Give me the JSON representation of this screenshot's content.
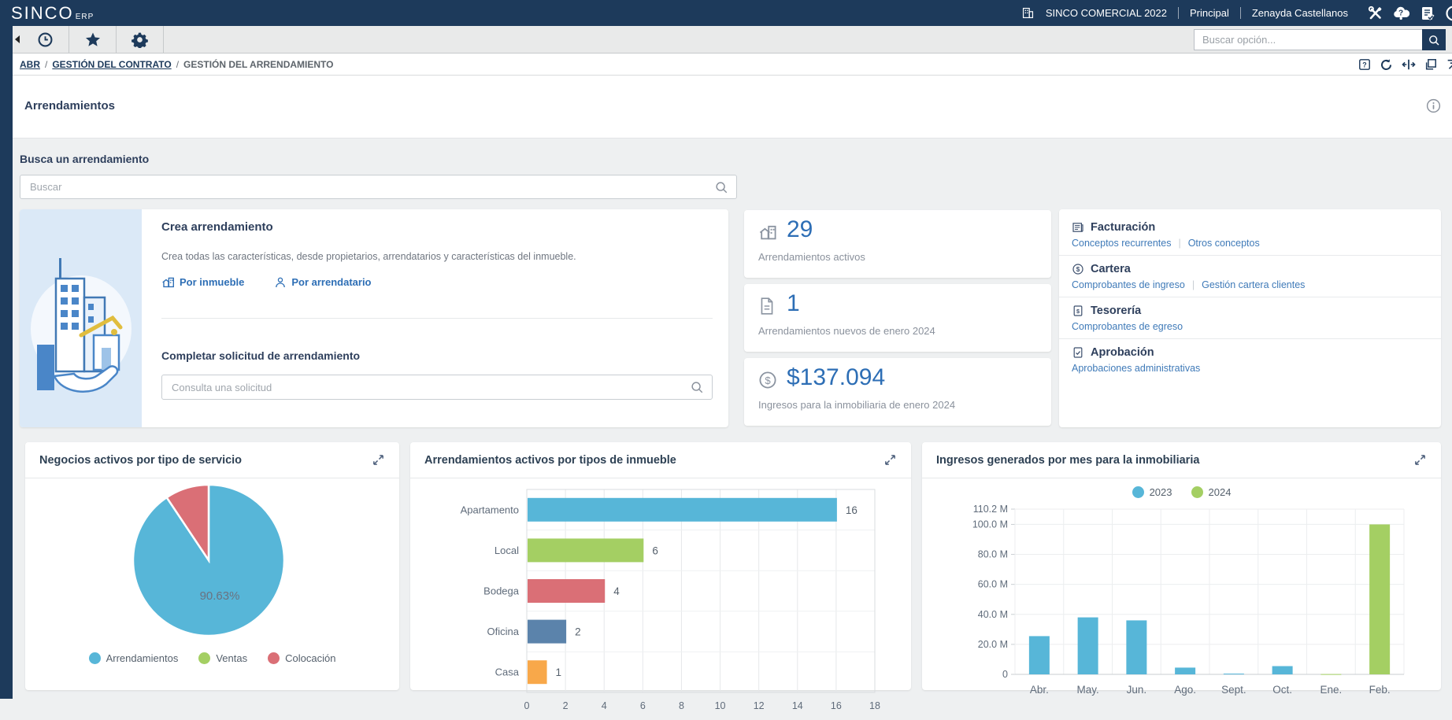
{
  "topbar": {
    "logo": "SINCO",
    "logo_sub": "ERP",
    "company": "SINCO COMERCIAL 2022",
    "nav_principal": "Principal",
    "user": "Zenayda Castellanos",
    "icons": [
      "company-building-icon",
      "tools-icon",
      "help-cloud-icon",
      "tasks-check-icon",
      "power-icon"
    ]
  },
  "toolbar": {
    "search_placeholder": "Buscar opción...",
    "tabs": [
      "recent-icon",
      "favorites-icon",
      "settings-icon"
    ]
  },
  "breadcrumb": {
    "items": [
      "ABR",
      "GESTIÓN DEL CONTRATO",
      "GESTIÓN DEL ARRENDAMIENTO"
    ],
    "window_icons": [
      "help-box-icon",
      "refresh-icon",
      "split-icon",
      "windows-icon",
      "export-icon"
    ]
  },
  "page": {
    "title": "Arrendamientos"
  },
  "search_section": {
    "label": "Busca un arrendamiento",
    "placeholder": "Buscar"
  },
  "create_card": {
    "title": "Crea arrendamiento",
    "description": "Crea todas las características, desde propietarios, arrendatarios y características del inmueble.",
    "link_inmueble": "Por inmueble",
    "link_arrendatario": "Por arrendatario",
    "request_title": "Completar solicitud de arrendamiento",
    "request_placeholder": "Consulta una solicitud"
  },
  "stats": [
    {
      "value": "29",
      "label": "Arrendamientos activos",
      "icon": "building-icon"
    },
    {
      "value": "1",
      "label": "Arrendamientos nuevos de enero 2024",
      "icon": "document-icon"
    },
    {
      "value": "$137.094",
      "label": "Ingresos para la inmobiliaria de enero 2024",
      "icon": "money-circle-icon"
    }
  ],
  "quick_links": [
    {
      "title": "Facturación",
      "icon": "invoice-icon",
      "links": [
        "Conceptos recurrentes",
        "Otros conceptos"
      ]
    },
    {
      "title": "Cartera",
      "icon": "money-circle-icon",
      "links": [
        "Comprobantes de ingreso",
        "Gestión cartera clientes"
      ]
    },
    {
      "title": "Tesorería",
      "icon": "receipt-money-icon",
      "links": [
        "Comprobantes de egreso"
      ]
    },
    {
      "title": "Aprobación",
      "icon": "document-check-icon",
      "links": [
        "Aprobaciones administrativas"
      ]
    }
  ],
  "colors": {
    "brand_navy": "#1d3a5b",
    "accent_blue": "#2d6eb5",
    "link_blue": "#3f7ab8",
    "page_bg": "#eef0f1"
  },
  "chart_data": [
    {
      "type": "pie",
      "title": "Negocios activos por tipo de servicio",
      "slices": [
        {
          "label": "Arrendamientos",
          "value": 90.63,
          "color": "#57b6d8"
        },
        {
          "label": "Ventas",
          "value": 0,
          "color": "#a4cf63"
        },
        {
          "label": "Colocación",
          "value": 9.37,
          "color": "#da6f76"
        }
      ],
      "inner_label": "90.63%",
      "legend_position": "bottom"
    },
    {
      "type": "bar",
      "orientation": "horizontal",
      "title": "Arrendamientos activos por tipos de inmueble",
      "categories": [
        "Apartamento",
        "Local",
        "Bodega",
        "Oficina",
        "Casa"
      ],
      "values": [
        16,
        6,
        4,
        2,
        1
      ],
      "colors": [
        "#57b6d8",
        "#a4cf63",
        "#da6f76",
        "#5b83ab",
        "#f8a84a"
      ],
      "xlim": [
        0,
        18
      ],
      "xticks": [
        0,
        2,
        4,
        6,
        8,
        10,
        12,
        14,
        16,
        18
      ],
      "grid": true
    },
    {
      "type": "bar",
      "orientation": "vertical",
      "title": "Ingresos generados por mes para la inmobiliaria",
      "categories": [
        "Abr.",
        "May.",
        "Jun.",
        "Ago.",
        "Sept.",
        "Oct.",
        "Ene.",
        "Feb."
      ],
      "series": [
        {
          "name": "2023",
          "color": "#57b6d8",
          "values": [
            25.5,
            38,
            36,
            4.5,
            0.5,
            5.5,
            null,
            null
          ]
        },
        {
          "name": "2024",
          "color": "#a4cf63",
          "values": [
            null,
            null,
            null,
            null,
            null,
            null,
            0.2,
            100
          ]
        }
      ],
      "ylim": [
        0,
        110.2
      ],
      "yticks": [
        {
          "v": 0,
          "label": "0"
        },
        {
          "v": 20,
          "label": "20.0 M"
        },
        {
          "v": 40,
          "label": "40.0 M"
        },
        {
          "v": 60,
          "label": "60.0 M"
        },
        {
          "v": 80,
          "label": "80.0 M"
        },
        {
          "v": 100,
          "label": "100.0 M"
        },
        {
          "v": 110.2,
          "label": "110.2 M"
        }
      ],
      "legend_position": "top",
      "grid": true
    }
  ]
}
